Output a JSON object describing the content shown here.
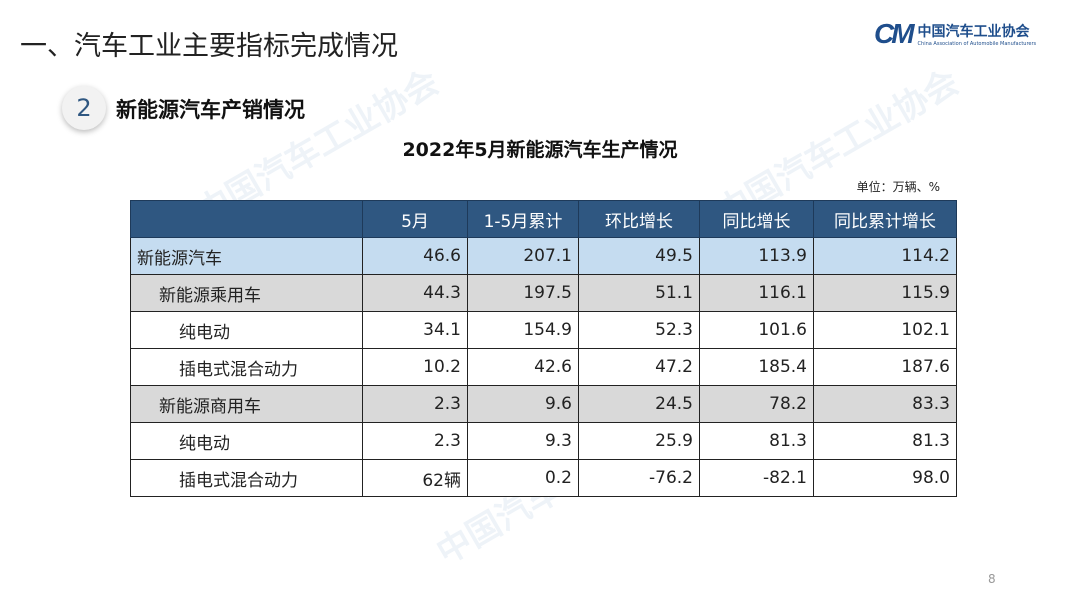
{
  "slide_title": "一、汽车工业主要指标完成情况",
  "logo": {
    "mark": "CM",
    "cn": "中国汽车工业协会",
    "en": "China Association of Automobile Manufacturers"
  },
  "section": {
    "number": "2",
    "title": "新能源汽车产销情况"
  },
  "table_title": "2022年5月新能源汽车生产情况",
  "unit": "单位：万辆、%",
  "headers": [
    "",
    "5月",
    "1-5月累计",
    "环比增长",
    "同比增长",
    "同比累计增长"
  ],
  "rows": [
    {
      "label": "新能源汽车",
      "level": 0,
      "values": [
        "46.6",
        "207.1",
        "49.5",
        "113.9",
        "114.2"
      ]
    },
    {
      "label": "新能源乘用车",
      "level": 1,
      "values": [
        "44.3",
        "197.5",
        "51.1",
        "116.1",
        "115.9"
      ]
    },
    {
      "label": "纯电动",
      "level": 2,
      "values": [
        "34.1",
        "154.9",
        "52.3",
        "101.6",
        "102.1"
      ]
    },
    {
      "label": "插电式混合动力",
      "level": 2,
      "values": [
        "10.2",
        "42.6",
        "47.2",
        "185.4",
        "187.6"
      ]
    },
    {
      "label": "新能源商用车",
      "level": 1,
      "values": [
        "2.3",
        "9.6",
        "24.5",
        "78.2",
        "83.3"
      ]
    },
    {
      "label": "纯电动",
      "level": 2,
      "values": [
        "2.3",
        "9.3",
        "25.9",
        "81.3",
        "81.3"
      ]
    },
    {
      "label": "插电式混合动力",
      "level": 2,
      "values": [
        "62辆",
        "0.2",
        "-76.2",
        "-82.1",
        "98.0"
      ]
    }
  ],
  "page_number": "8",
  "colors": {
    "header": "#2f5781",
    "total_row": "#c5dcf0",
    "subtotal_row": "#d9d9d9"
  }
}
